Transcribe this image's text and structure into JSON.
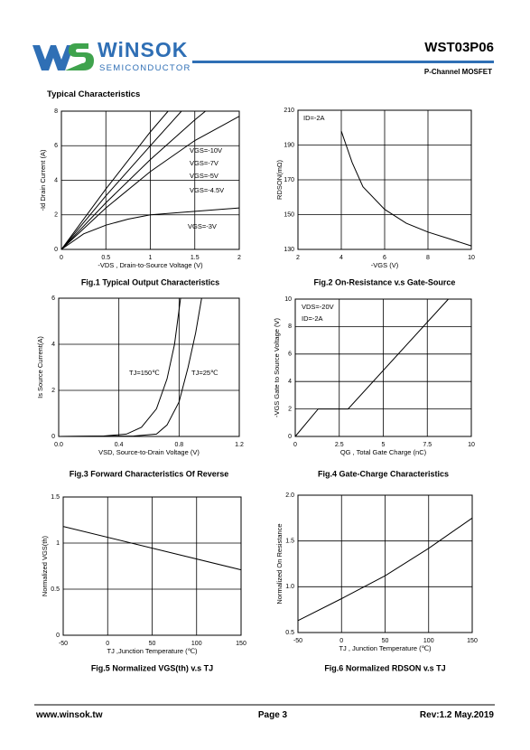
{
  "header": {
    "logo_name": "WiNSOK",
    "logo_sub": "SEMICONDUCTOR",
    "part": "WST03P06",
    "subtitle": "P-Channel MOSFET",
    "section": "Typical Characteristics"
  },
  "chart_data": [
    {
      "type": "line",
      "title": "Fig.1 Typical Output Characteristics",
      "xlabel": "-VDS , Drain-to-Source Voltage (V)",
      "ylabel": "-Id Drain Current (A)",
      "xlim": [
        0,
        2
      ],
      "ylim": [
        0,
        8
      ],
      "xticks": [
        0,
        0.5,
        1,
        1.5,
        2
      ],
      "yticks": [
        0,
        2,
        4,
        6,
        8
      ],
      "grid": true,
      "series": [
        {
          "name": "VGS=-10V",
          "color": "#000000",
          "x": [
            0,
            0.5,
            1,
            1.2
          ],
          "values": [
            0,
            3.5,
            6.8,
            8
          ]
        },
        {
          "name": "VGS=-7V",
          "color": "#000000",
          "x": [
            0,
            0.5,
            1,
            1.35
          ],
          "values": [
            0,
            3.1,
            6,
            8
          ]
        },
        {
          "name": "VGS=-5V",
          "color": "#000000",
          "x": [
            0,
            0.5,
            1,
            1.5,
            1.62
          ],
          "values": [
            0,
            2.7,
            5.2,
            7.5,
            8
          ]
        },
        {
          "name": "VGS=-4.5V",
          "color": "#000000",
          "x": [
            0,
            0.5,
            1,
            1.5,
            2
          ],
          "values": [
            0,
            2.4,
            4.5,
            6.3,
            7.7
          ]
        },
        {
          "name": "VGS=-3V",
          "color": "#000000",
          "x": [
            0,
            0.25,
            0.5,
            0.75,
            1,
            1.5,
            2
          ],
          "values": [
            0,
            0.9,
            1.4,
            1.75,
            2,
            2.2,
            2.4
          ]
        }
      ]
    },
    {
      "type": "line",
      "title": "Fig.2 On-Resistance v.s Gate-Source",
      "xlabel": "-VGS (V)",
      "ylabel": "RDSON(mΩ)",
      "xlim": [
        2,
        10
      ],
      "ylim": [
        130,
        210
      ],
      "xticks": [
        2,
        4,
        6,
        8,
        10
      ],
      "yticks": [
        130,
        150,
        170,
        190,
        210
      ],
      "grid": true,
      "annotations": [
        "ID=-2A"
      ],
      "series": [
        {
          "color": "#000000",
          "x": [
            4,
            4.5,
            5,
            6,
            7,
            8,
            9,
            10
          ],
          "values": [
            198,
            180,
            166,
            153,
            145,
            140,
            136,
            132
          ]
        }
      ]
    },
    {
      "type": "line",
      "title": "Fig.3 Forward Characteristics Of Reverse",
      "xlabel": "VSD, Source-to-Drain Voltage (V)",
      "ylabel": "Is Source Current(A)",
      "xlim": [
        0,
        1.2
      ],
      "ylim": [
        0,
        6
      ],
      "xticks": [
        {
          "value": 0,
          "label": "0.0"
        },
        0.4,
        0.8,
        1.2
      ],
      "yticks": [
        0,
        2,
        4,
        6
      ],
      "grid": true,
      "series": [
        {
          "name": "TJ=150℃",
          "color": "#000000",
          "x": [
            0,
            0.3,
            0.45,
            0.55,
            0.65,
            0.72,
            0.77,
            0.81
          ],
          "values": [
            0,
            0.02,
            0.1,
            0.4,
            1.2,
            2.5,
            4,
            6
          ]
        },
        {
          "name": "TJ=25℃",
          "color": "#000000",
          "x": [
            0,
            0.5,
            0.65,
            0.72,
            0.8,
            0.86,
            0.91,
            0.95
          ],
          "values": [
            0,
            0.02,
            0.1,
            0.5,
            1.5,
            3,
            4.5,
            6
          ]
        }
      ]
    },
    {
      "type": "line",
      "title": "Fig.4 Gate-Charge Characteristics",
      "xlabel": "QG , Total Gate Charge (nC)",
      "ylabel": "-VGS Gate to Source Voltage (V)",
      "xlim": [
        0,
        10
      ],
      "ylim": [
        0,
        10
      ],
      "xticks": [
        0,
        2.5,
        5,
        7.5,
        10
      ],
      "yticks": [
        0,
        2,
        4,
        6,
        8,
        10
      ],
      "grid": true,
      "annotations": [
        "VDS=-20V",
        "ID=-2A"
      ],
      "series": [
        {
          "color": "#000000",
          "x": [
            0,
            1.3,
            3,
            8.7
          ],
          "values": [
            0,
            2,
            2,
            10
          ]
        }
      ]
    },
    {
      "type": "line",
      "title": "Fig.5 Normalized VGS(th) v.s TJ",
      "xlabel": "TJ ,Junction Temperature (℃)",
      "ylabel": "Normalized VGS(th)",
      "xlim": [
        -50,
        150
      ],
      "ylim": [
        0,
        1.5
      ],
      "xticks": [
        -50,
        0,
        50,
        100,
        150
      ],
      "yticks": [
        0,
        0.5,
        1,
        1.5
      ],
      "grid": true,
      "series": [
        {
          "color": "#000000",
          "x": [
            -50,
            150
          ],
          "values": [
            1.18,
            0.71
          ]
        }
      ]
    },
    {
      "type": "line",
      "title": "Fig.6 Normalized RDSON v.s TJ",
      "xlabel": "TJ , Junction Temperature (℃)",
      "ylabel": "Normalized On Resistance",
      "xlim": [
        -50,
        150
      ],
      "ylim": [
        0.5,
        2
      ],
      "xticks": [
        -50,
        0,
        50,
        100,
        150
      ],
      "yticks": [
        0.5,
        {
          "value": 1,
          "label": "1.0"
        },
        1.5,
        {
          "value": 2,
          "label": "2.0"
        }
      ],
      "grid": true,
      "series": [
        {
          "color": "#000000",
          "x": [
            -50,
            0,
            50,
            100,
            150
          ],
          "values": [
            0.63,
            0.87,
            1.12,
            1.42,
            1.75
          ]
        }
      ]
    }
  ],
  "footer": {
    "website": "www.winsok.tw",
    "page": "Page 3",
    "revision": "Rev:1.2 May.2019"
  }
}
